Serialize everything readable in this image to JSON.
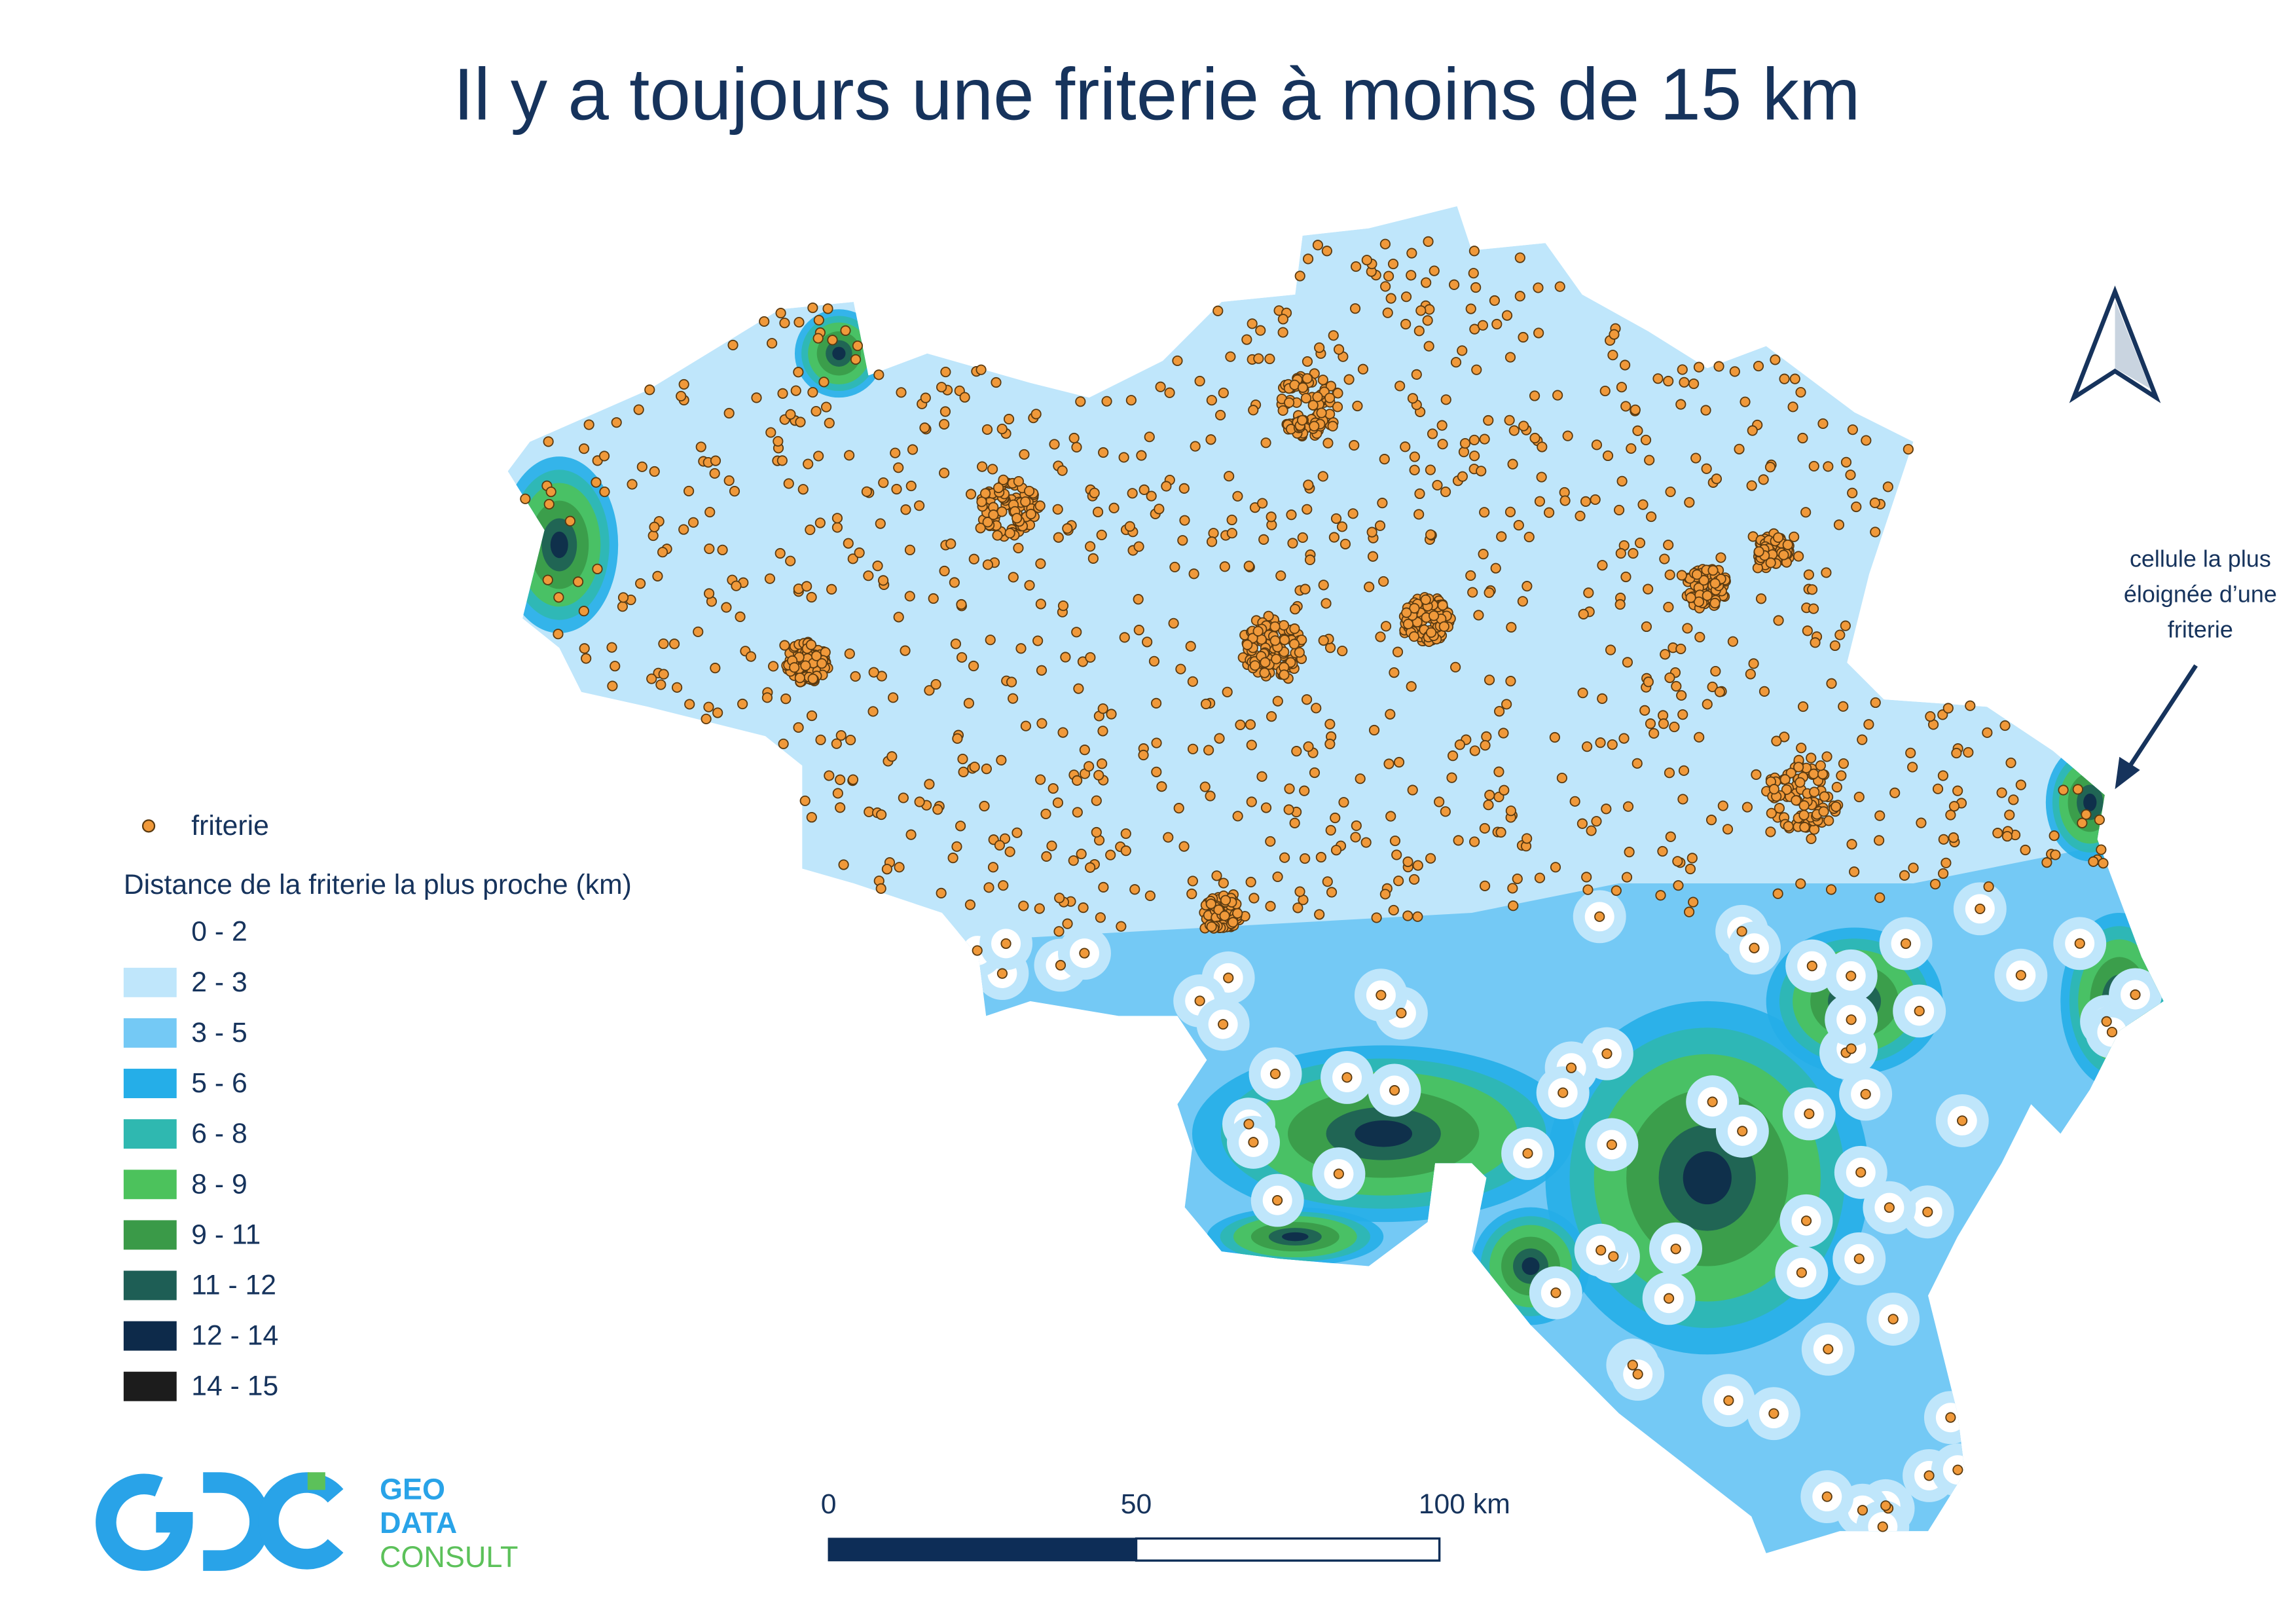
{
  "title": "Il y a toujours une friterie à moins de 15 km",
  "legend": {
    "point_label": "friterie",
    "point_color": "#f0993a",
    "title": "Distance de la friterie la plus proche (km)",
    "classes": [
      {
        "label": "0 - 2",
        "color": "#ffffff"
      },
      {
        "label": "2 - 3",
        "color": "#bfe6fb"
      },
      {
        "label": "3 - 5",
        "color": "#74c9f5"
      },
      {
        "label": "5 - 6",
        "color": "#25aee8"
      },
      {
        "label": "6 - 8",
        "color": "#2fb8b0"
      },
      {
        "label": "8 - 9",
        "color": "#4cc25c"
      },
      {
        "label": "9 - 11",
        "color": "#3a9a48"
      },
      {
        "label": "11 - 12",
        "color": "#1e5e55"
      },
      {
        "label": "12 - 14",
        "color": "#0d2a4a"
      },
      {
        "label": "14 - 15",
        "color": "#1c1c1c"
      }
    ]
  },
  "annotation": {
    "lines": [
      "cellule la plus",
      "éloignée d’une",
      "friterie"
    ]
  },
  "scale_bar": {
    "labels": [
      "0",
      "50",
      "100 km"
    ]
  },
  "logo": {
    "lines": [
      "GEO",
      "DATA",
      "CONSULT"
    ]
  }
}
